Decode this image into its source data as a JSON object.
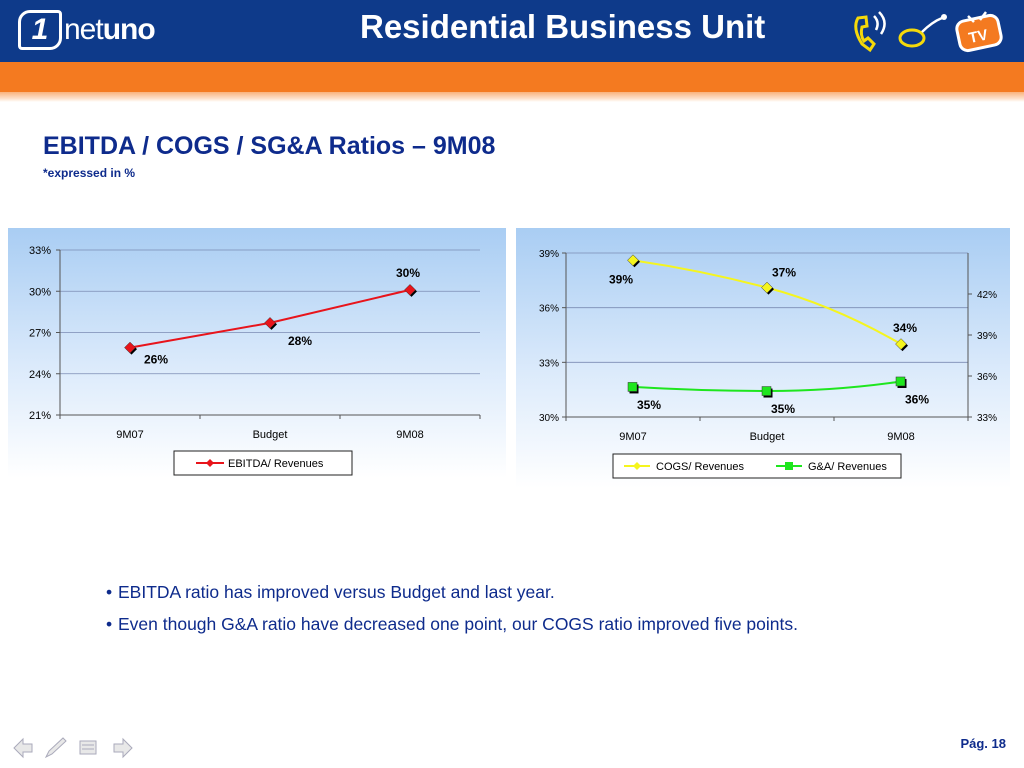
{
  "header": {
    "logo_text_light": "net",
    "logo_text_bold": "uno",
    "logo_badge": "1",
    "title": "Residential Business Unit",
    "tv_badge": "TV"
  },
  "slide": {
    "title": "EBITDA / COGS / SG&A Ratios – 9M08",
    "subtitle": "*expressed in %"
  },
  "colors": {
    "header_blue": "#0e3a8a",
    "orange": "#f47a20",
    "ebitda_red": "#e8141b",
    "cogs_yellow": "#f5f51e",
    "ga_green": "#1ee61e",
    "title_blue": "#0e2b8c"
  },
  "chart_data": [
    {
      "type": "line",
      "categories": [
        "9M07",
        "Budget",
        "9M08"
      ],
      "series": [
        {
          "name": "EBITDA/ Revenues",
          "values": [
            25.9,
            27.7,
            30.1
          ],
          "labels": [
            "26%",
            "28%",
            "30%"
          ],
          "color": "#e8141b",
          "marker": "diamond"
        }
      ],
      "y_ticks": [
        "21%",
        "24%",
        "27%",
        "30%",
        "33%"
      ],
      "ylim": [
        21,
        33
      ],
      "grid": true,
      "legend": "bottom"
    },
    {
      "type": "line",
      "categories": [
        "9M07",
        "Budget",
        "9M08"
      ],
      "series": [
        {
          "name": "COGS/ Revenues",
          "values": [
            38.6,
            37.1,
            34.0
          ],
          "labels": [
            "39%",
            "37%",
            "34%"
          ],
          "color": "#f5f51e",
          "marker": "diamond",
          "axis": "left"
        },
        {
          "name": "G&A/ Revenues",
          "values": [
            35.2,
            34.9,
            35.6
          ],
          "labels": [
            "35%",
            "35%",
            "36%"
          ],
          "color": "#1ee61e",
          "marker": "square",
          "axis": "right"
        }
      ],
      "y_ticks_left": [
        "30%",
        "33%",
        "36%",
        "39%"
      ],
      "ylim_left": [
        30,
        39
      ],
      "y_ticks_right": [
        "33%",
        "36%",
        "39%",
        "42%"
      ],
      "ylim_right": [
        33,
        45
      ],
      "grid": true,
      "legend": "bottom"
    }
  ],
  "bullets": [
    "EBITDA ratio has improved versus Budget and last year.",
    "Even though G&A ratio have decreased one point, our COGS ratio improved five points."
  ],
  "footer": {
    "page": "Pág. 18",
    "nav_icons": [
      "back-arrow-icon",
      "pen-icon",
      "menu-icon",
      "forward-arrow-icon"
    ]
  }
}
